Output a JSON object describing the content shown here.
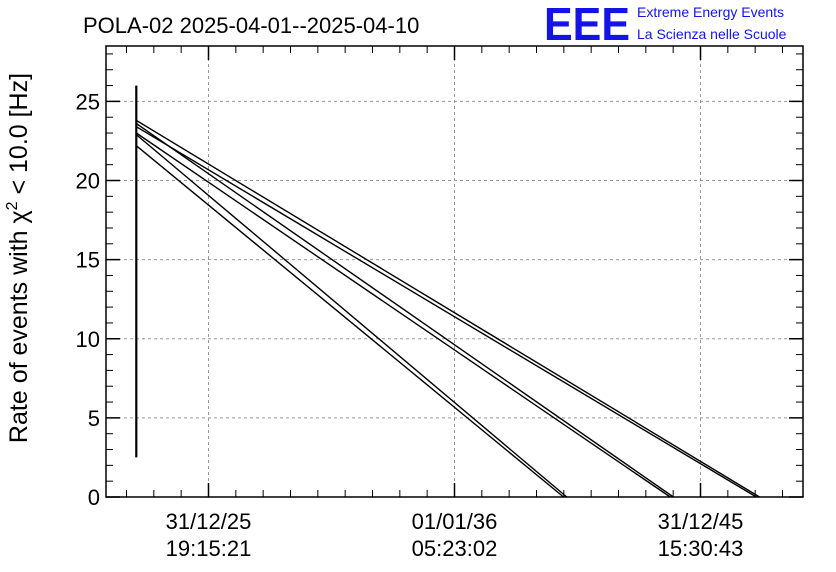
{
  "chart_data": {
    "type": "line",
    "title": "POLA-02 2025-04-01--2025-04-10",
    "ylabel_parts": [
      "Rate of events with χ",
      "2",
      " < 10.0 [Hz]"
    ],
    "xlabel": "",
    "x_tick_labels": [
      {
        "x": 1,
        "line1": "31/12/25",
        "line2": "19:15:21"
      },
      {
        "x": 4,
        "line1": "01/01/36",
        "line2": "05:23:02"
      },
      {
        "x": 7,
        "line1": "31/12/45",
        "line2": "15:30:43"
      }
    ],
    "xlim": [
      -0.25,
      8.25
    ],
    "ylim": [
      0,
      28.5
    ],
    "y_ticks": [
      0,
      5,
      10,
      15,
      20,
      25
    ],
    "grid": true,
    "series": [
      {
        "values": [
          [
            0.12,
            2.5
          ],
          [
            0.12,
            26.0
          ]
        ]
      },
      {
        "values": [
          [
            0.12,
            23.8
          ],
          [
            7.72,
            0
          ]
        ]
      },
      {
        "values": [
          [
            0.12,
            23.4
          ],
          [
            7.68,
            0
          ]
        ]
      },
      {
        "values": [
          [
            0.12,
            23.6
          ],
          [
            6.67,
            0
          ]
        ]
      },
      {
        "values": [
          [
            0.12,
            23.0
          ],
          [
            6.63,
            0
          ]
        ]
      },
      {
        "values": [
          [
            0.12,
            22.9
          ],
          [
            5.37,
            0
          ]
        ]
      },
      {
        "values": [
          [
            0.12,
            22.2
          ],
          [
            5.33,
            0
          ]
        ]
      }
    ]
  },
  "logo": {
    "mark": "EEE",
    "line1": "Extreme Energy Events",
    "line2": "La Scienza nelle Scuole",
    "color": "#1414e6"
  }
}
